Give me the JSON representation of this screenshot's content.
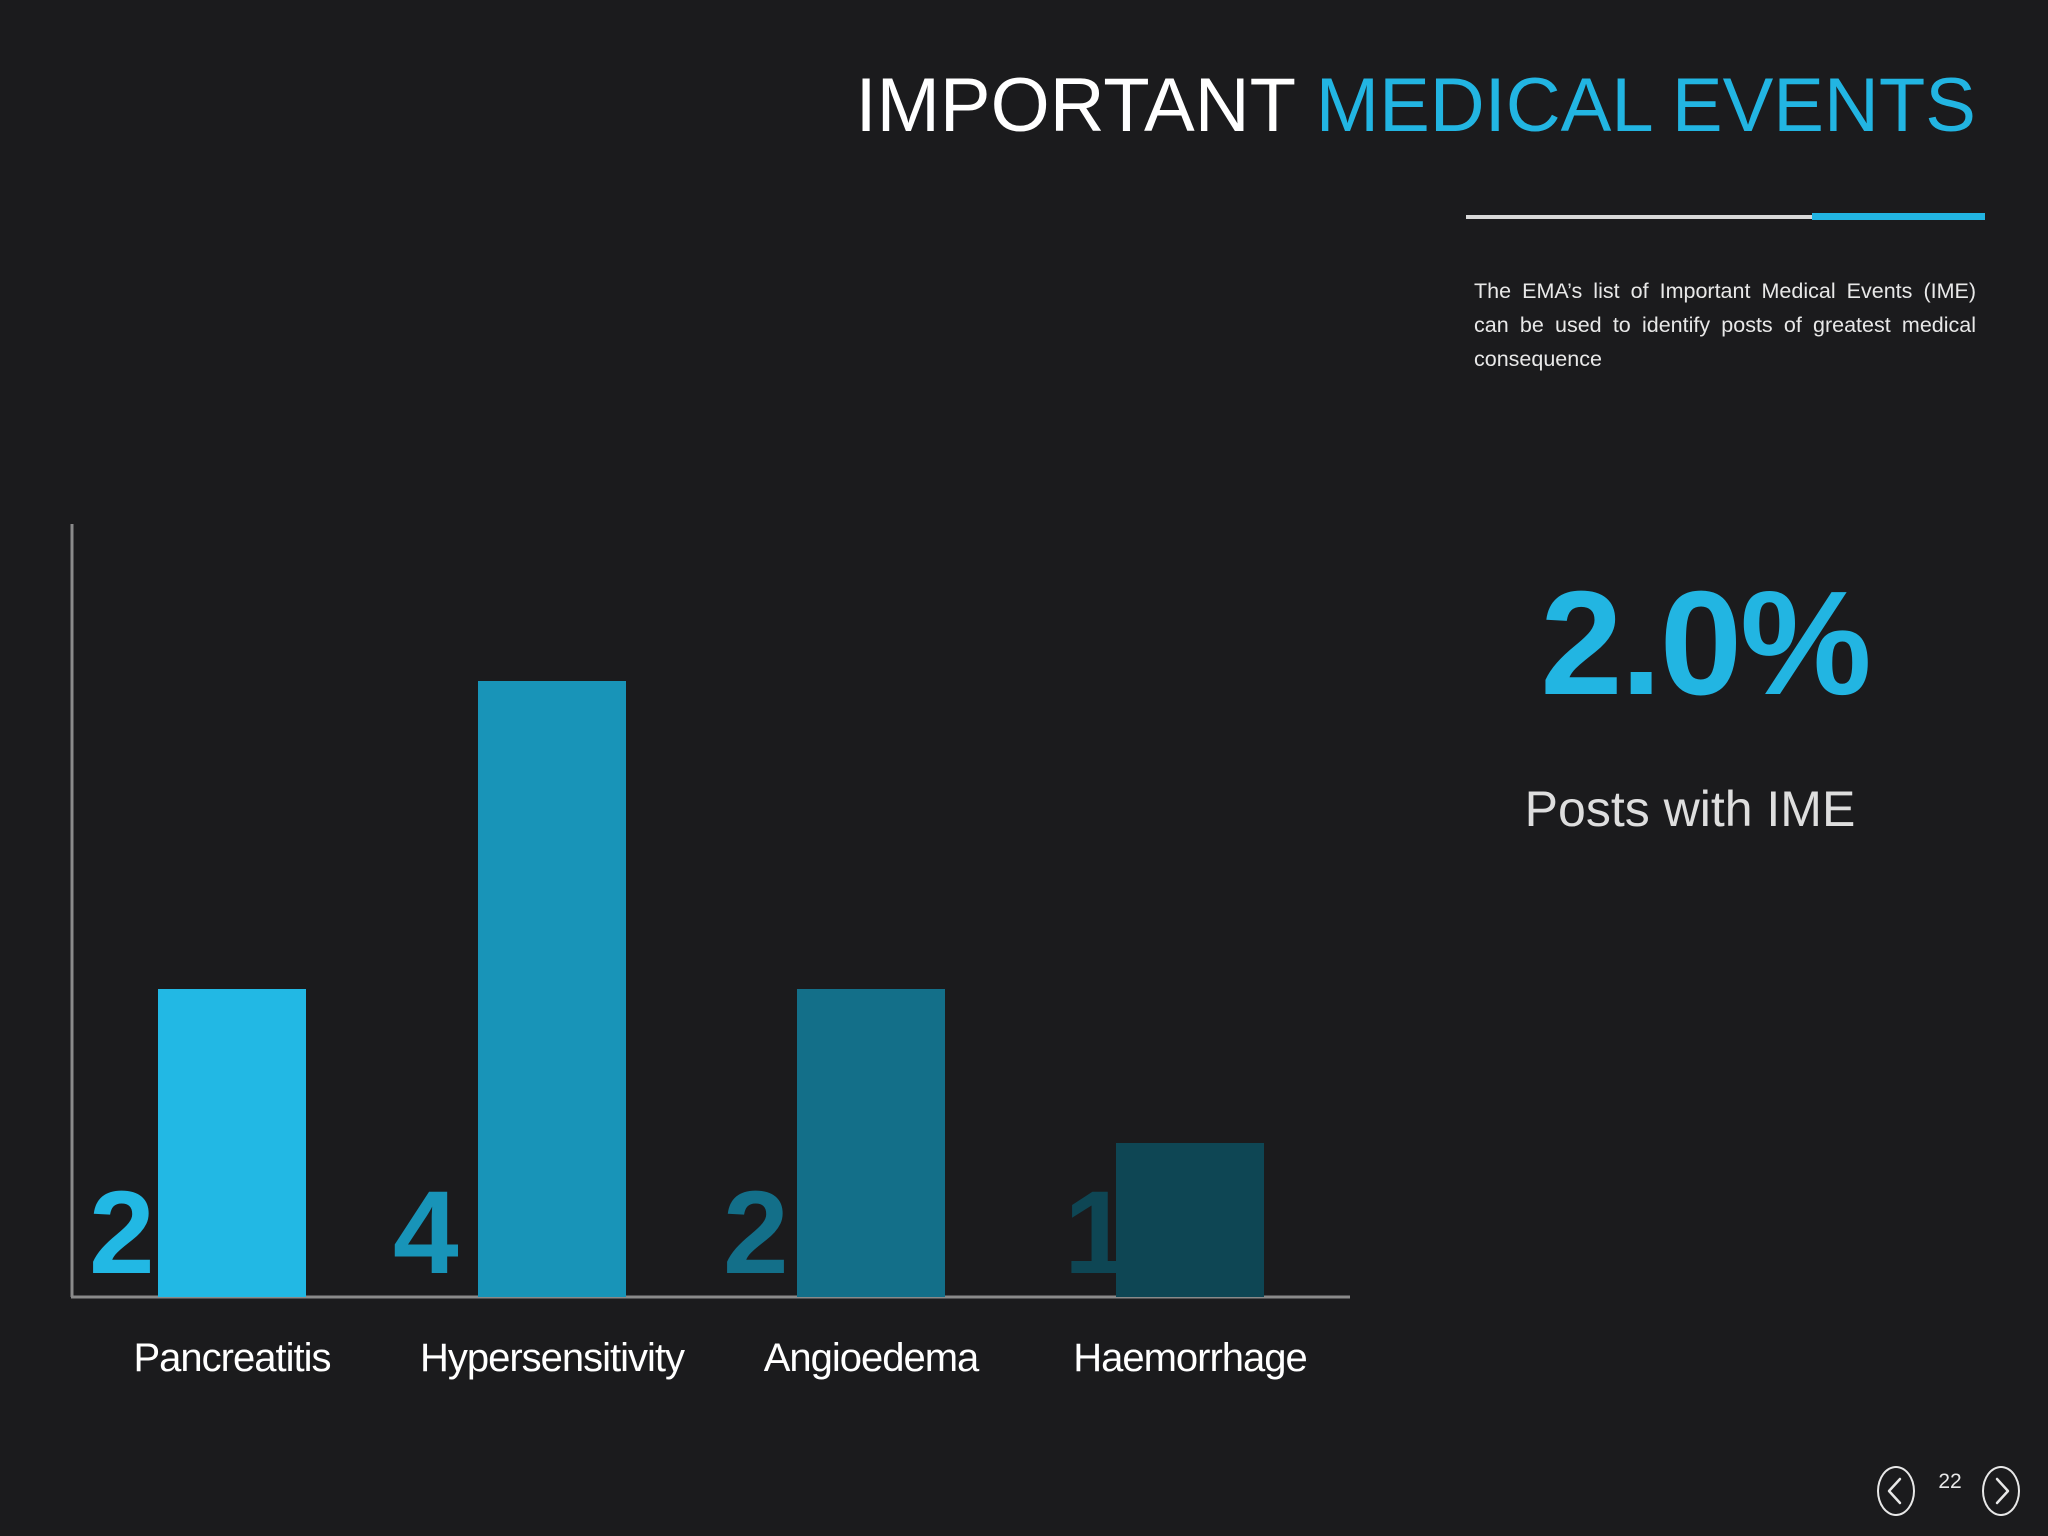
{
  "title": {
    "part1": "IMPORTANT ",
    "part2": "MEDICAL EVENTS"
  },
  "description": "The EMA’s list of Important Medical Events (IME) can be used to identify posts of greatest medical consequence",
  "stat": {
    "value": "2.0%",
    "label": "Posts with IME"
  },
  "page_number": "22",
  "colors": {
    "accent": "#22b5e2",
    "background": "#1b1b1d"
  },
  "icons": {
    "prev": "chevron-left-icon",
    "next": "chevron-right-icon"
  },
  "chart_data": {
    "type": "bar",
    "categories": [
      "Pancreatitis",
      "Hypersensitivity",
      "Angioedema",
      "Haemorrhage"
    ],
    "values": [
      2,
      4,
      2,
      1
    ],
    "data_labels": [
      "2",
      "4",
      "2",
      "1"
    ],
    "bar_colors": [
      "#22b8e4",
      "#1894b8",
      "#136f89",
      "#0e4654"
    ],
    "ylim": [
      0,
      5
    ],
    "grid": false,
    "legend": "none",
    "title": "",
    "xlabel": "",
    "ylabel": ""
  }
}
